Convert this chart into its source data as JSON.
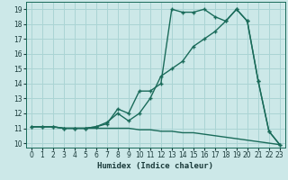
{
  "xlabel": "Humidex (Indice chaleur)",
  "bg_color": "#cce8e8",
  "grid_color": "#aad4d4",
  "line_color": "#1a6b5a",
  "xlim": [
    -0.5,
    23.5
  ],
  "ylim": [
    9.7,
    19.5
  ],
  "xticks": [
    0,
    1,
    2,
    3,
    4,
    5,
    6,
    7,
    8,
    9,
    10,
    11,
    12,
    13,
    14,
    15,
    16,
    17,
    18,
    19,
    20,
    21,
    22,
    23
  ],
  "yticks": [
    10,
    11,
    12,
    13,
    14,
    15,
    16,
    17,
    18,
    19
  ],
  "line1_x": [
    0,
    1,
    2,
    3,
    4,
    5,
    6,
    7,
    8,
    9,
    10,
    11,
    12,
    13,
    14,
    15,
    16,
    17,
    18,
    19,
    20,
    21,
    22,
    23
  ],
  "line1_y": [
    11.1,
    11.1,
    11.1,
    11.0,
    11.0,
    11.0,
    11.1,
    11.3,
    12.3,
    12.0,
    13.5,
    13.5,
    14.0,
    19.0,
    18.8,
    18.8,
    19.0,
    18.5,
    18.2,
    19.0,
    18.2,
    14.2,
    10.8,
    9.9
  ],
  "line2_x": [
    0,
    1,
    2,
    3,
    4,
    5,
    6,
    7,
    8,
    9,
    10,
    11,
    12,
    13,
    14,
    15,
    16,
    17,
    18,
    19,
    20,
    21,
    22,
    23
  ],
  "line2_y": [
    11.1,
    11.1,
    11.1,
    11.0,
    11.0,
    11.0,
    11.1,
    11.4,
    12.0,
    11.5,
    12.0,
    13.0,
    14.5,
    15.0,
    15.5,
    16.5,
    17.0,
    17.5,
    18.2,
    19.0,
    18.2,
    14.2,
    10.8,
    9.9
  ],
  "line3_x": [
    0,
    1,
    2,
    3,
    4,
    5,
    6,
    7,
    8,
    9,
    10,
    11,
    12,
    13,
    14,
    15,
    16,
    17,
    18,
    19,
    20,
    21,
    22,
    23
  ],
  "line3_y": [
    11.1,
    11.1,
    11.1,
    11.0,
    11.0,
    11.0,
    11.0,
    11.0,
    11.0,
    11.0,
    10.9,
    10.9,
    10.8,
    10.8,
    10.7,
    10.7,
    10.6,
    10.5,
    10.4,
    10.3,
    10.2,
    10.1,
    10.0,
    9.9
  ],
  "markersize": 3,
  "linewidth": 1.0
}
